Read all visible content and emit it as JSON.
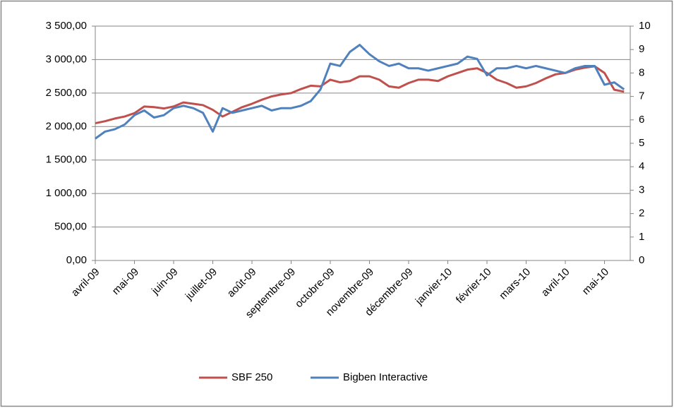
{
  "chart_data": {
    "type": "line",
    "categories": [
      "avril-09",
      null,
      null,
      null,
      "mai-09",
      null,
      null,
      null,
      "juin-09",
      null,
      null,
      null,
      "juillet-09",
      null,
      null,
      null,
      "août-09",
      null,
      null,
      null,
      "septembre-09",
      null,
      null,
      null,
      "octobre-09",
      null,
      null,
      null,
      "novembre-09",
      null,
      null,
      null,
      "décembre-09",
      null,
      null,
      null,
      "janvier-10",
      null,
      null,
      null,
      "février-10",
      null,
      null,
      null,
      "mars-10",
      null,
      null,
      null,
      "avril-10",
      null,
      null,
      null,
      "mai-10",
      null,
      null
    ],
    "series": [
      {
        "name": "SBF 250",
        "color": "#c0504d",
        "values": [
          2050,
          2080,
          2120,
          2150,
          2200,
          2300,
          2290,
          2270,
          2300,
          2360,
          2340,
          2320,
          2250,
          2150,
          2220,
          2290,
          2340,
          2400,
          2450,
          2480,
          2500,
          2560,
          2610,
          2600,
          2700,
          2660,
          2680,
          2750,
          2750,
          2700,
          2600,
          2580,
          2650,
          2700,
          2700,
          2680,
          2750,
          2800,
          2850,
          2870,
          2800,
          2700,
          2650,
          2580,
          2600,
          2650,
          2720,
          2780,
          2800,
          2850,
          2880,
          2900,
          2800,
          2550,
          2520
        ]
      },
      {
        "name": "Bigben Interactive",
        "color": "#4f81bd",
        "axis": "y2",
        "values": [
          5.2,
          5.5,
          5.6,
          5.8,
          6.2,
          6.4,
          6.1,
          6.2,
          6.5,
          6.6,
          6.5,
          6.3,
          5.5,
          6.5,
          6.3,
          6.4,
          6.5,
          6.6,
          6.4,
          6.5,
          6.5,
          6.6,
          6.8,
          7.3,
          8.4,
          8.3,
          8.9,
          9.2,
          8.8,
          8.5,
          8.3,
          8.4,
          8.2,
          8.2,
          8.1,
          8.2,
          8.3,
          8.4,
          8.7,
          8.6,
          7.9,
          8.2,
          8.2,
          8.3,
          8.2,
          8.3,
          8.2,
          8.1,
          8.0,
          8.2,
          8.3,
          8.3,
          7.5,
          7.6,
          7.3
        ]
      }
    ],
    "ylim": [
      0,
      3500
    ],
    "yticks": [
      {
        "value": 0,
        "label": "0,00"
      },
      {
        "value": 500,
        "label": "500,00"
      },
      {
        "value": 1000,
        "label": "1 000,00"
      },
      {
        "value": 1500,
        "label": "1 500,00"
      },
      {
        "value": 2000,
        "label": "2 000,00"
      },
      {
        "value": 2500,
        "label": "2 500,00"
      },
      {
        "value": 3000,
        "label": "3 000,00"
      },
      {
        "value": 3500,
        "label": "3 500,00"
      }
    ],
    "y2lim": [
      0,
      10
    ],
    "y2ticks": [
      0,
      1,
      2,
      3,
      4,
      5,
      6,
      7,
      8,
      9,
      10
    ],
    "grid": true,
    "legend": "bottom"
  }
}
